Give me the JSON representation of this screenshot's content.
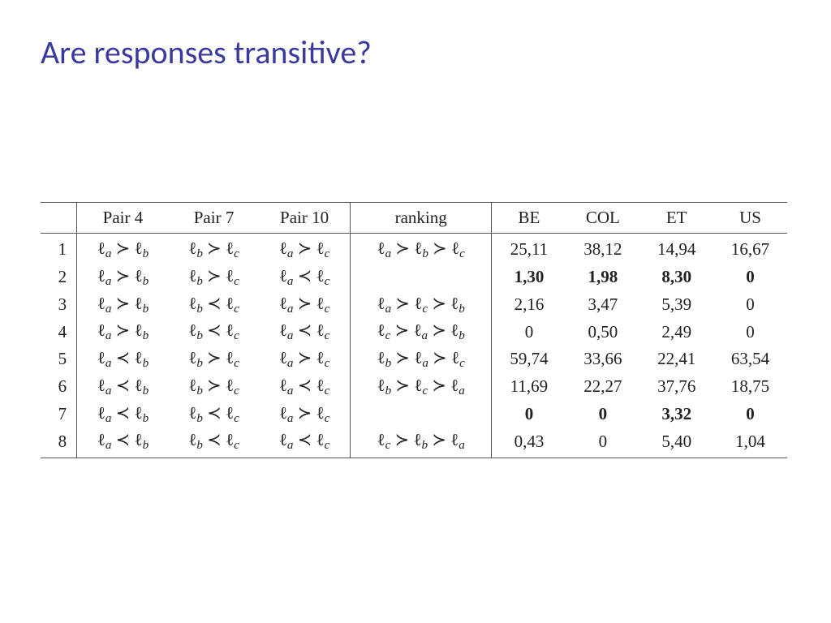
{
  "title": "Are responses transitive?",
  "table": {
    "columns": [
      "Pair 4",
      "Pair 7",
      "Pair 10",
      "ranking",
      "BE",
      "COL",
      "ET",
      "US"
    ],
    "rows": [
      {
        "n": "1",
        "p4": "ℓa ≻ ℓb",
        "p7": "ℓb ≻ ℓc",
        "p10": "ℓa ≻ ℓc",
        "rank": "ℓa ≻ ℓb ≻ ℓc",
        "be": "25,11",
        "col": "38,12",
        "et": "14,94",
        "us": "16,67",
        "bold": false
      },
      {
        "n": "2",
        "p4": "ℓa ≻ ℓb",
        "p7": "ℓb ≻ ℓc",
        "p10": "ℓa ≺ ℓc",
        "rank": "",
        "be": "1,30",
        "col": "1,98",
        "et": "8,30",
        "us": "0",
        "bold": true
      },
      {
        "n": "3",
        "p4": "ℓa ≻ ℓb",
        "p7": "ℓb ≺ ℓc",
        "p10": "ℓa ≻ ℓc",
        "rank": "ℓa ≻ ℓc ≻ ℓb",
        "be": "2,16",
        "col": "3,47",
        "et": "5,39",
        "us": "0",
        "bold": false
      },
      {
        "n": "4",
        "p4": "ℓa ≻ ℓb",
        "p7": "ℓb ≺ ℓc",
        "p10": "ℓa ≺ ℓc",
        "rank": "ℓc ≻ ℓa ≻ ℓb",
        "be": "0",
        "col": "0,50",
        "et": "2,49",
        "us": "0",
        "bold": false
      },
      {
        "n": "5",
        "p4": "ℓa ≺ ℓb",
        "p7": "ℓb ≻ ℓc",
        "p10": "ℓa ≻ ℓc",
        "rank": "ℓb ≻ ℓa ≻ ℓc",
        "be": "59,74",
        "col": "33,66",
        "et": "22,41",
        "us": "63,54",
        "bold": false
      },
      {
        "n": "6",
        "p4": "ℓa ≺ ℓb",
        "p7": "ℓb ≻ ℓc",
        "p10": "ℓa ≺ ℓc",
        "rank": "ℓb ≻ ℓc ≻ ℓa",
        "be": "11,69",
        "col": "22,27",
        "et": "37,76",
        "us": "18,75",
        "bold": false
      },
      {
        "n": "7",
        "p4": "ℓa ≺ ℓb",
        "p7": "ℓb ≺ ℓc",
        "p10": "ℓa ≻ ℓc",
        "rank": "",
        "be": "0",
        "col": "0",
        "et": "3,32",
        "us": "0",
        "bold": true
      },
      {
        "n": "8",
        "p4": "ℓa ≺ ℓb",
        "p7": "ℓb ≺ ℓc",
        "p10": "ℓa ≺ ℓc",
        "rank": "ℓc ≻ ℓb ≻ ℓa",
        "be": "0,43",
        "col": "0",
        "et": "5,40",
        "us": "1,04",
        "bold": false
      }
    ]
  },
  "style": {
    "title_color": "#3a3a9e",
    "title_fontsize": 40,
    "body_fontsize": 21,
    "border_color": "#555555",
    "bg_color": "#ffffff"
  }
}
